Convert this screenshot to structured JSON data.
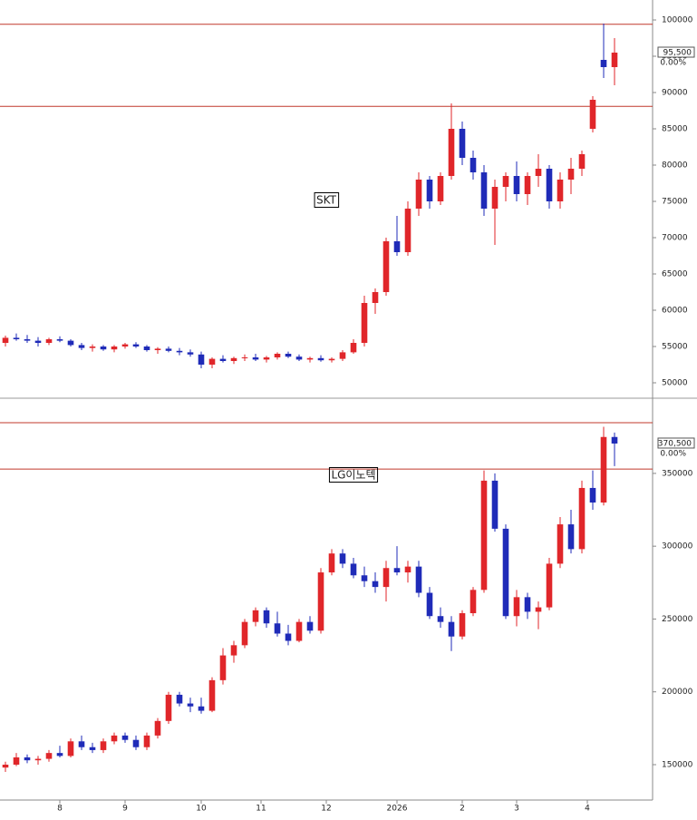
{
  "chart_data": [
    {
      "type": "candlestick",
      "title": "SKT",
      "open": [
        55500,
        56200,
        56000,
        55800,
        55500,
        56000,
        55800,
        55200,
        54800,
        55000,
        54600,
        55000,
        55300,
        55000,
        54500,
        54700,
        54400,
        54200,
        53900,
        52500,
        53300,
        53000,
        53400,
        53500,
        53200,
        53500,
        54000,
        53600,
        53200,
        53400,
        53100,
        53300,
        54200,
        55500,
        61000,
        62500,
        69500,
        68000,
        74000,
        78000,
        75000,
        78500,
        85000,
        81000,
        79000,
        74000,
        77000,
        78500,
        76000,
        78500,
        79500,
        75000,
        78000,
        79500,
        85000,
        94500,
        93500
      ],
      "high": [
        56500,
        56800,
        56600,
        56300,
        56200,
        56400,
        56000,
        55500,
        55300,
        55200,
        55200,
        55500,
        55600,
        55200,
        54900,
        55000,
        54800,
        54600,
        54300,
        53500,
        53800,
        53600,
        53900,
        54000,
        53700,
        54200,
        54300,
        53900,
        53600,
        53800,
        53500,
        54500,
        56000,
        62000,
        63000,
        70000,
        73000,
        75000,
        79000,
        78500,
        79000,
        88500,
        86000,
        82000,
        80000,
        78000,
        79000,
        80500,
        79000,
        81500,
        80000,
        79000,
        81000,
        82000,
        89500,
        99500,
        97500
      ],
      "low": [
        55000,
        55800,
        55500,
        55000,
        55200,
        55600,
        55000,
        54500,
        54300,
        54400,
        54200,
        54700,
        54800,
        54300,
        54000,
        54200,
        53800,
        53600,
        52000,
        52000,
        52800,
        52600,
        53000,
        53000,
        52800,
        53200,
        53400,
        53000,
        52800,
        52900,
        52800,
        53000,
        54000,
        55000,
        59500,
        62000,
        67500,
        67500,
        73000,
        74000,
        74500,
        78000,
        80000,
        78000,
        73000,
        69000,
        75000,
        75000,
        74500,
        77000,
        74000,
        74000,
        76000,
        78500,
        84500,
        92000,
        91000
      ],
      "close": [
        56200,
        56000,
        55800,
        55500,
        56000,
        55800,
        55200,
        54800,
        55000,
        54600,
        55000,
        55300,
        55000,
        54500,
        54700,
        54400,
        54200,
        53900,
        52500,
        53300,
        53000,
        53400,
        53500,
        53200,
        53500,
        54000,
        53600,
        53200,
        53400,
        53100,
        53300,
        54200,
        55500,
        61000,
        62500,
        69500,
        68000,
        74000,
        78000,
        75000,
        78500,
        85000,
        81000,
        79000,
        74000,
        77000,
        78500,
        76000,
        78500,
        79500,
        75000,
        78000,
        79500,
        81500,
        89000,
        93500,
        95500
      ],
      "up_color": "#e0262a",
      "down_color": "#1f2bb8",
      "xlim": [
        -0.5,
        59.5
      ],
      "ylim": [
        48000,
        102750
      ],
      "yticks": [
        50000,
        55000,
        60000,
        65000,
        70000,
        75000,
        80000,
        85000,
        90000,
        95000,
        100000
      ],
      "hlines": [
        99400,
        88100
      ],
      "hline_color": "#c0392b",
      "last_price": {
        "value": 95500,
        "label": "95,500"
      },
      "change": "0.00%"
    },
    {
      "type": "candlestick",
      "title": "LG이노텍",
      "open": [
        148000,
        150000,
        155000,
        153000,
        154000,
        158000,
        156000,
        166000,
        162000,
        160000,
        166000,
        170000,
        167000,
        162000,
        170000,
        180000,
        198000,
        192000,
        190000,
        187000,
        208000,
        225000,
        232000,
        248000,
        256000,
        247000,
        240000,
        235000,
        248000,
        242000,
        282000,
        295000,
        288000,
        280000,
        276000,
        272000,
        285000,
        282000,
        286000,
        268000,
        252000,
        248000,
        238000,
        254000,
        270000,
        345000,
        312000,
        252000,
        265000,
        255000,
        258000,
        288000,
        315000,
        298000,
        340000,
        330000,
        375000
      ],
      "high": [
        152000,
        158000,
        157000,
        156000,
        160000,
        163000,
        168000,
        170000,
        165000,
        168000,
        172000,
        172000,
        170000,
        172000,
        182000,
        200000,
        200000,
        196000,
        196000,
        210000,
        230000,
        235000,
        250000,
        258000,
        258000,
        255000,
        246000,
        250000,
        252000,
        285000,
        298000,
        298000,
        292000,
        286000,
        282000,
        290000,
        300000,
        290000,
        290000,
        272000,
        258000,
        252000,
        256000,
        272000,
        352000,
        350000,
        315000,
        270000,
        268000,
        262000,
        292000,
        320000,
        325000,
        345000,
        352000,
        382000,
        378000
      ],
      "low": [
        145000,
        149000,
        151000,
        150000,
        152000,
        155000,
        155000,
        160000,
        158000,
        158000,
        164000,
        165000,
        160000,
        160000,
        168000,
        178000,
        190000,
        186000,
        185000,
        186000,
        205000,
        220000,
        230000,
        245000,
        244000,
        238000,
        232000,
        234000,
        240000,
        240000,
        280000,
        285000,
        278000,
        272000,
        268000,
        262000,
        280000,
        275000,
        265000,
        250000,
        244000,
        228000,
        236000,
        252000,
        268000,
        310000,
        250000,
        245000,
        250000,
        243000,
        256000,
        285000,
        295000,
        295000,
        325000,
        328000,
        355000
      ],
      "close": [
        150000,
        155000,
        153000,
        154000,
        158000,
        156000,
        166000,
        162000,
        160000,
        166000,
        170000,
        167000,
        162000,
        170000,
        180000,
        198000,
        192000,
        190000,
        187000,
        208000,
        225000,
        232000,
        248000,
        256000,
        247000,
        240000,
        235000,
        248000,
        242000,
        282000,
        295000,
        288000,
        280000,
        276000,
        272000,
        285000,
        282000,
        286000,
        268000,
        252000,
        248000,
        238000,
        254000,
        270000,
        345000,
        312000,
        252000,
        265000,
        255000,
        258000,
        288000,
        315000,
        298000,
        340000,
        330000,
        375000,
        370500
      ],
      "up_color": "#e0262a",
      "down_color": "#1f2bb8",
      "xlim": [
        -0.5,
        59.5
      ],
      "ylim": [
        125700,
        401000
      ],
      "yticks": [
        150000,
        200000,
        250000,
        300000,
        350000
      ],
      "xticks": [
        {
          "value": 5,
          "label": "8"
        },
        {
          "value": 11,
          "label": "9"
        },
        {
          "value": 18,
          "label": "10"
        },
        {
          "value": 23.5,
          "label": "11"
        },
        {
          "value": 29.5,
          "label": "12"
        },
        {
          "value": 36,
          "label": "2026"
        },
        {
          "value": 42,
          "label": "2"
        },
        {
          "value": 47,
          "label": "3"
        },
        {
          "value": 53.5,
          "label": "4"
        }
      ],
      "hlines": [
        384800,
        353000
      ],
      "hline_color": "#c0392b",
      "last_price": {
        "value": 370500,
        "label": "370,500"
      },
      "change": "0.00%"
    }
  ]
}
